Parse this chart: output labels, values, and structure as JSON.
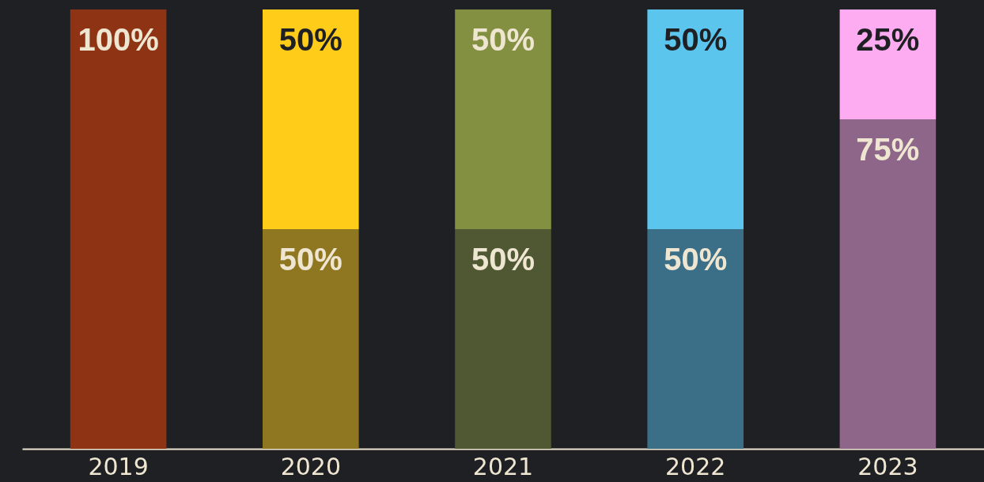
{
  "chart_data": {
    "type": "bar",
    "stacked": true,
    "categories": [
      "2019",
      "2020",
      "2021",
      "2022",
      "2023"
    ],
    "series": [
      {
        "values": [
          100,
          50,
          50,
          50,
          75
        ],
        "colors": [
          "#8e3415",
          "#8f7620",
          "#4f5832",
          "#3b6f88",
          "#8d6689"
        ],
        "value_labels": [
          "100%",
          "50%",
          "50%",
          "50%",
          "75%"
        ]
      },
      {
        "values": [
          null,
          50,
          50,
          50,
          25
        ],
        "colors": [
          null,
          "#ffcc1a",
          "#839041",
          "#5bc5ee",
          "#fdacf1"
        ],
        "value_labels": [
          null,
          "50%",
          "50%",
          "50%",
          "25%"
        ]
      }
    ],
    "ylim": [
      0,
      100
    ],
    "tick_labels": "x",
    "grid": false
  }
}
